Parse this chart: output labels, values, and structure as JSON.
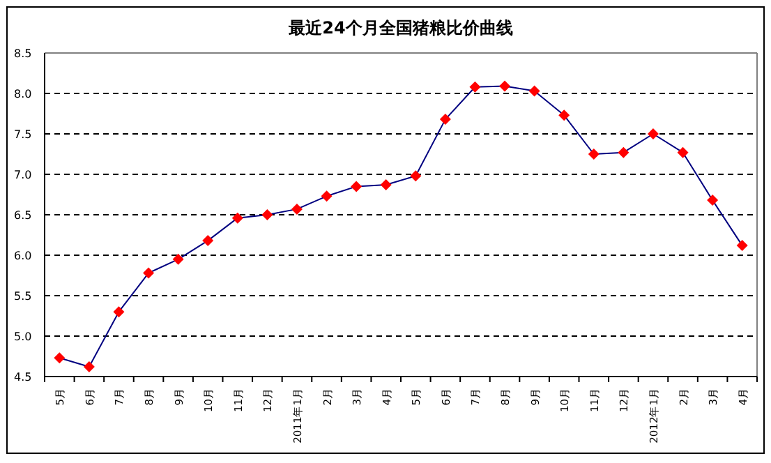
{
  "chart_data": {
    "type": "line",
    "title": "最近24个月全国猪粮比价曲线",
    "categories": [
      "5月",
      "6月",
      "7月",
      "8月",
      "9月",
      "10月",
      "11月",
      "12月",
      "2011年1月",
      "2月",
      "3月",
      "4月",
      "5月",
      "6月",
      "7月",
      "8月",
      "9月",
      "10月",
      "11月",
      "12月",
      "2012年1月",
      "2月",
      "3月",
      "4月"
    ],
    "series": [
      {
        "color": "#000080",
        "colors": [
          "#ff0000",
          "#ff0000",
          "#ff0000",
          "#ff0000",
          "#ff0000",
          "#ff0000",
          "#ff0000",
          "#ff0000",
          "#ff0000",
          "#ff0000",
          "#ff0000",
          "#ff0000",
          "#ff0000",
          "#ff0000",
          "#ff0000",
          "#ff0000",
          "#ff0000",
          "#ff0000",
          "#ff0000",
          "#ff0000",
          "#ff0000",
          "#ff0000",
          "#ff0000",
          "#ff0000"
        ],
        "values": [
          4.73,
          4.62,
          5.3,
          5.78,
          5.95,
          6.18,
          6.46,
          6.5,
          6.57,
          6.73,
          6.85,
          6.87,
          6.98,
          7.68,
          8.08,
          8.09,
          8.03,
          7.73,
          7.25,
          7.27,
          7.5,
          7.27,
          6.68,
          6.12
        ]
      }
    ],
    "ylim": [
      4.5,
      8.5
    ],
    "yticks": [
      {
        "value": 4.5,
        "label": "4.5"
      },
      {
        "value": 5,
        "label": "5.0"
      },
      {
        "value": 5.5,
        "label": "5.5"
      },
      {
        "value": 6,
        "label": "6.0"
      },
      {
        "value": 6.5,
        "label": "6.5"
      },
      {
        "value": 7,
        "label": "7.0"
      },
      {
        "value": 7.5,
        "label": "7.5"
      },
      {
        "value": 8,
        "label": "8.0"
      },
      {
        "value": 8.5,
        "label": "8.5"
      }
    ],
    "grid": "y",
    "marker": "diamond",
    "line_style": "solid"
  }
}
